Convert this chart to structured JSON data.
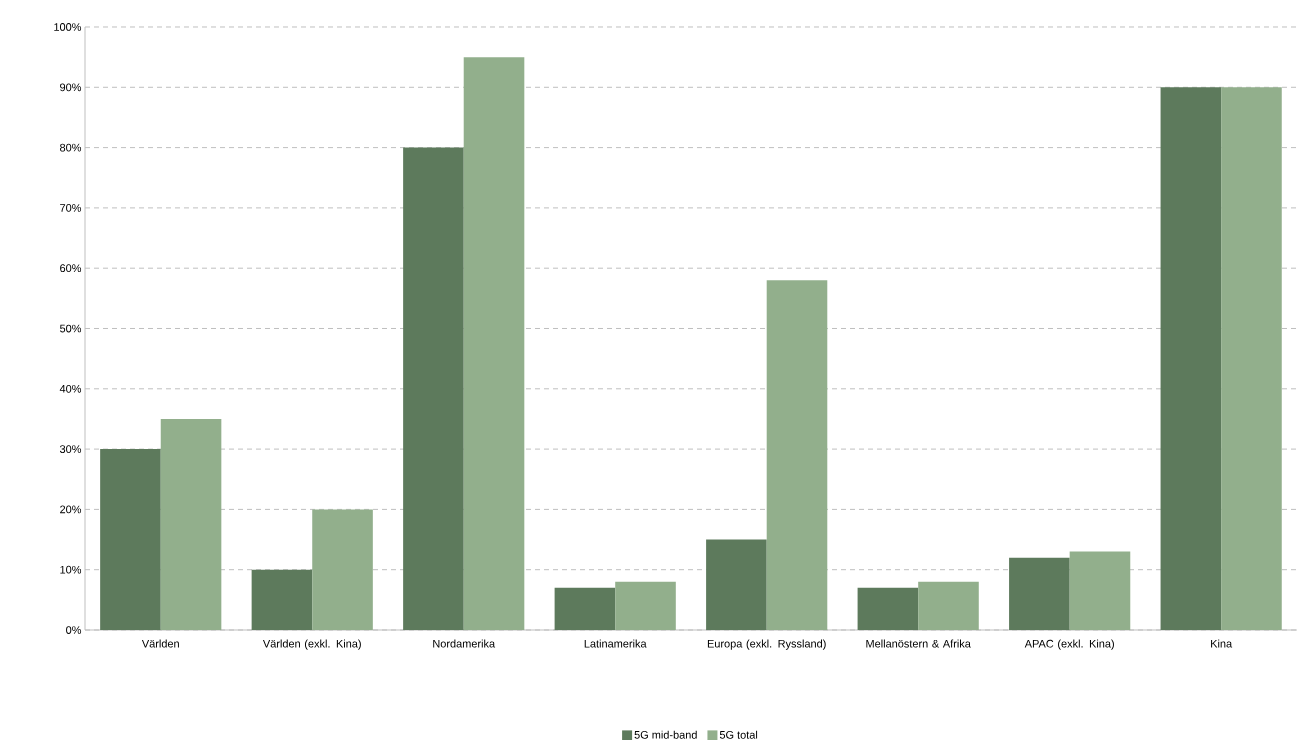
{
  "chart_data": {
    "type": "bar",
    "categories": [
      "Världen",
      "Världen (exkl. Kina)",
      "Nordamerika",
      "Latinamerika",
      "Europa (exkl. Ryssland)",
      "Mellanöstern & Afrika",
      "APAC (exkl. Kina)",
      "Kina"
    ],
    "series": [
      {
        "name": "5G mid-band",
        "color": "#5d7a5c",
        "values": [
          30,
          10,
          80,
          7,
          15,
          7,
          12,
          90
        ]
      },
      {
        "name": "5G total",
        "color": "#92af8c",
        "values": [
          35,
          20,
          95,
          8,
          58,
          8,
          13,
          90
        ]
      }
    ],
    "ylim": [
      0,
      100
    ],
    "yticks": [
      {
        "value": 0,
        "label": "0%"
      },
      {
        "value": 10,
        "label": "10%"
      },
      {
        "value": 20,
        "label": "20%"
      },
      {
        "value": 30,
        "label": "30%"
      },
      {
        "value": 40,
        "label": "40%"
      },
      {
        "value": 50,
        "label": "50%"
      },
      {
        "value": 60,
        "label": "60%"
      },
      {
        "value": 70,
        "label": "70%"
      },
      {
        "value": 80,
        "label": "80%"
      },
      {
        "value": 90,
        "label": "90%"
      },
      {
        "value": 100,
        "label": "100%"
      }
    ],
    "grid": "y",
    "legend": "bottom"
  }
}
